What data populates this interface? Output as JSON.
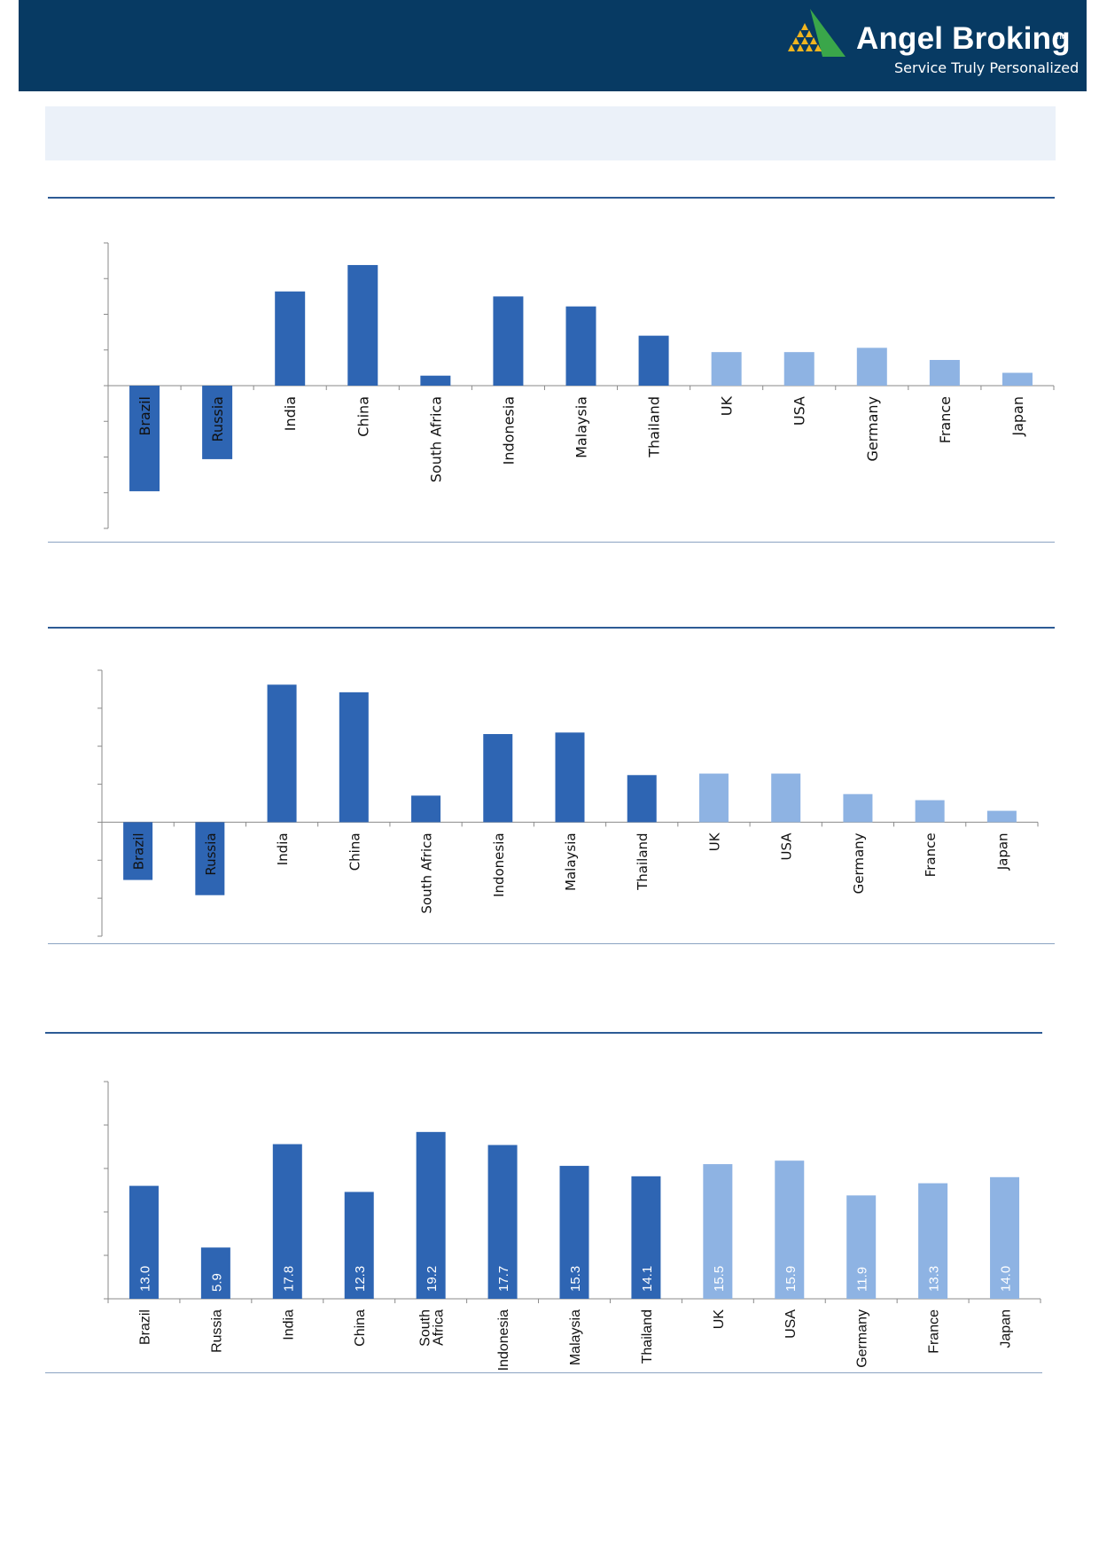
{
  "header": {
    "brand_name": "Angel Broking",
    "trademark": "TM",
    "tagline": "Service Truly Personalized",
    "logo_icon": "angel-broking-triangle-logo",
    "background_color": "#073a63",
    "logo_colors": [
      "#3aa64a",
      "#f2b51e"
    ]
  },
  "colors": {
    "emerging": "#2e65b3",
    "developed": "#8eb3e3",
    "axis": "#8a8a8a",
    "title_band": "#ebf1f9"
  },
  "chart_data": [
    {
      "type": "bar",
      "categories": [
        "Brazil",
        "Russia",
        "India",
        "China",
        "South Africa",
        "Indonesia",
        "Malaysia",
        "Thailand",
        "UK",
        "USA",
        "Germany",
        "France",
        "Japan"
      ],
      "values": [
        -14.8,
        -10.3,
        13.2,
        16.9,
        1.4,
        12.5,
        11.1,
        7.0,
        4.7,
        4.7,
        5.3,
        3.6,
        1.8
      ],
      "groups": [
        "emerging",
        "emerging",
        "emerging",
        "emerging",
        "emerging",
        "emerging",
        "emerging",
        "emerging",
        "developed",
        "developed",
        "developed",
        "developed",
        "developed"
      ],
      "ylim": [
        -20,
        20
      ],
      "yticks": [
        -20,
        -15,
        -10,
        -5,
        0,
        5,
        10,
        15,
        20
      ],
      "grid": false,
      "tick_labels_shown": false,
      "title": "",
      "xlabel": "",
      "ylabel": ""
    },
    {
      "type": "bar",
      "categories": [
        "Brazil",
        "Russia",
        "India",
        "China",
        "South Africa",
        "Indonesia",
        "Malaysia",
        "Thailand",
        "UK",
        "USA",
        "Germany",
        "France",
        "Japan"
      ],
      "values": [
        -7.6,
        -9.6,
        18.1,
        17.1,
        3.5,
        11.6,
        11.8,
        6.2,
        6.4,
        6.4,
        3.7,
        2.9,
        1.5
      ],
      "groups": [
        "emerging",
        "emerging",
        "emerging",
        "emerging",
        "emerging",
        "emerging",
        "emerging",
        "emerging",
        "developed",
        "developed",
        "developed",
        "developed",
        "developed"
      ],
      "ylim": [
        -15,
        20
      ],
      "yticks": [
        -15,
        -10,
        -5,
        0,
        5,
        10,
        15,
        20
      ],
      "grid": false,
      "tick_labels_shown": false,
      "title": "",
      "xlabel": "",
      "ylabel": ""
    },
    {
      "type": "bar",
      "categories": [
        "Brazil",
        "Russia",
        "India",
        "China",
        "South Africa",
        "Indonesia",
        "Malaysia",
        "Thailand",
        "UK",
        "USA",
        "Germany",
        "France",
        "Japan"
      ],
      "values": [
        13.0,
        5.9,
        17.8,
        12.3,
        19.2,
        17.7,
        15.3,
        14.1,
        15.5,
        15.9,
        11.9,
        13.3,
        14.0
      ],
      "data_labels": [
        "13.0",
        "5.9",
        "17.8",
        "12.3",
        "19.2",
        "17.7",
        "15.3",
        "14.1",
        "15.5",
        "15.9",
        "11.9",
        "13.3",
        "14.0"
      ],
      "groups": [
        "emerging",
        "emerging",
        "emerging",
        "emerging",
        "emerging",
        "emerging",
        "emerging",
        "emerging",
        "developed",
        "developed",
        "developed",
        "developed",
        "developed"
      ],
      "ylim": [
        0,
        25
      ],
      "yticks": [
        0,
        5,
        10,
        15,
        20,
        25
      ],
      "grid": false,
      "tick_labels_shown": false,
      "title": "",
      "xlabel": "",
      "ylabel": ""
    }
  ]
}
